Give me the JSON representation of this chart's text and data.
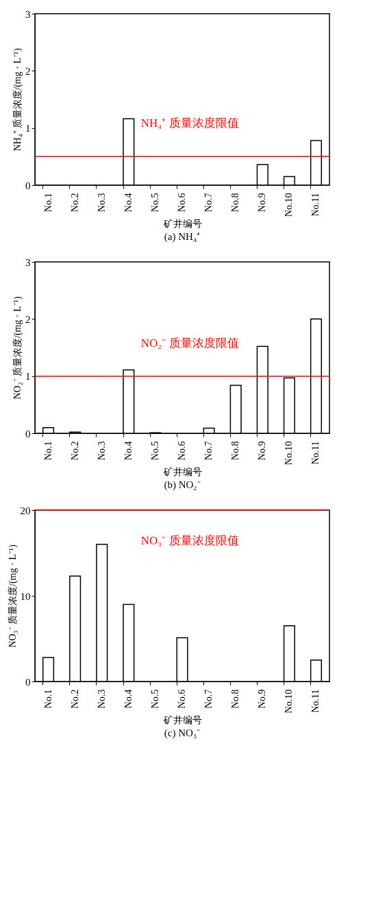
{
  "chart_data": [
    {
      "type": "bar",
      "title": "(a) NH₄⁺",
      "xlabel": "矿井编号",
      "ylabel": "NH₄⁺ 质量浓度/(mg · L⁻¹)",
      "categories": [
        "No.1",
        "No.2",
        "No.3",
        "No.4",
        "No.5",
        "No.6",
        "No.7",
        "No.8",
        "No.9",
        "No.10",
        "No.11"
      ],
      "values": [
        null,
        null,
        null,
        1.16,
        null,
        null,
        null,
        null,
        0.36,
        0.15,
        0.78
      ],
      "color": "#ffffff",
      "ylim": [
        0,
        3
      ],
      "yticks": [
        0,
        1,
        2,
        3
      ],
      "grid": false,
      "ref_lines": [
        {
          "axis": "y",
          "value": 0.5,
          "label": "NH₄⁺ 质量浓度限值",
          "color": "#ff0000",
          "line_style": "solid"
        }
      ]
    },
    {
      "type": "bar",
      "title": "(b) NO₂⁻",
      "xlabel": "矿井编号",
      "ylabel": "NO₂⁻ 质量浓度/(mg · L⁻¹)",
      "categories": [
        "No.1",
        "No.2",
        "No.3",
        "No.4",
        "No.5",
        "No.6",
        "No.7",
        "No.8",
        "No.9",
        "No.10",
        "No.11"
      ],
      "values": [
        0.1,
        0.02,
        null,
        1.11,
        0.01,
        null,
        0.09,
        0.84,
        1.52,
        0.97,
        2.0
      ],
      "color": "#ffffff",
      "ylim": [
        0,
        3
      ],
      "yticks": [
        0,
        1,
        2,
        3
      ],
      "grid": false,
      "ref_lines": [
        {
          "axis": "y",
          "value": 1,
          "label": "NO₂⁻ 质量浓度限值",
          "color": "#ff0000",
          "line_style": "solid"
        }
      ]
    },
    {
      "type": "bar",
      "title": "(c) NO₃⁻",
      "xlabel": "矿井编号",
      "ylabel": "NO₃⁻ 质量浓度/(mg · L⁻¹)",
      "categories": [
        "No.1",
        "No.2",
        "No.3",
        "No.4",
        "No.5",
        "No.6",
        "No.7",
        "No.8",
        "No.9",
        "No.10",
        "No.11"
      ],
      "values": [
        2.8,
        12.3,
        16.0,
        9.0,
        null,
        5.1,
        null,
        null,
        null,
        6.5,
        2.5
      ],
      "color": "#ffffff",
      "ylim": [
        0,
        20
      ],
      "yticks": [
        0,
        10,
        20
      ],
      "grid": false,
      "ref_lines": [
        {
          "axis": "y",
          "value": 20,
          "label": "NO₃⁻ 质量浓度限值",
          "color": "#ff0000",
          "line_style": "solid"
        }
      ]
    }
  ]
}
